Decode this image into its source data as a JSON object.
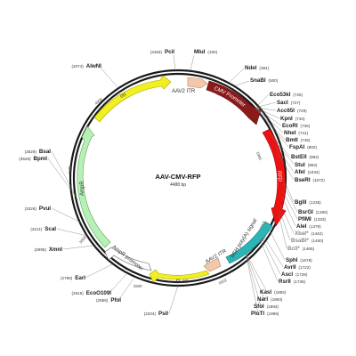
{
  "plasmid": {
    "name": "AAV-CMV-RFP",
    "size_label": "4488 bp",
    "size": 4488
  },
  "ticks": [
    "500",
    "1000",
    "1500",
    "2000",
    "2500",
    "3000",
    "3500",
    "4000"
  ],
  "features": [
    {
      "key": "cmv_promoter",
      "label": "CMV Promoter",
      "color": "#8b1a1a"
    },
    {
      "key": "rfp",
      "label": "RFP",
      "color": "#ee1111"
    },
    {
      "key": "bgh_polya",
      "label": "bGH poly(A) signal",
      "color": "#2bb5b5"
    },
    {
      "key": "aav2_itr_1",
      "label": "AAV2 ITR",
      "color": "#f3c7a8"
    },
    {
      "key": "aav2_itr_2",
      "label": "AAV2 ITR",
      "color": "#f3c7a8"
    },
    {
      "key": "f1_ori",
      "label": "f1 ori",
      "color": "#f2ef20"
    },
    {
      "key": "ampr_promoter",
      "label": "AmpR promoter",
      "color": "#ffffff"
    },
    {
      "key": "ampr",
      "label": "AmpR",
      "color": "#b7f0b7"
    },
    {
      "key": "ori",
      "label": "ori",
      "color": "#f2ef20"
    }
  ],
  "sites": [
    {
      "name": "PciI",
      "pos": "(4483)"
    },
    {
      "name": "MluI",
      "pos": "(150)"
    },
    {
      "name": "AlwNI",
      "pos": "(4074)"
    },
    {
      "name": "NdeI",
      "pos": "(394)"
    },
    {
      "name": "SnaBI",
      "pos": "(500)"
    },
    {
      "name": "Eco53kI",
      "pos": "(725)"
    },
    {
      "name": "SacI",
      "pos": "(727)"
    },
    {
      "name": "Acc65I",
      "pos": "(729)"
    },
    {
      "name": "KpnI",
      "pos": "(733)"
    },
    {
      "name": "EcoRI",
      "pos": "(735)"
    },
    {
      "name": "NheI",
      "pos": "(741)"
    },
    {
      "name": "BmtI",
      "pos": "(745)"
    },
    {
      "name": "FspAI",
      "pos": "(800)"
    },
    {
      "name": "BstEII",
      "pos": "(892)"
    },
    {
      "name": "StuI",
      "pos": "(962)"
    },
    {
      "name": "AfeI",
      "pos": "(1034)"
    },
    {
      "name": "BseRI",
      "pos": "(1072)"
    },
    {
      "name": "BglII",
      "pos": "(1236)"
    },
    {
      "name": "BsrGI",
      "pos": "(1290)"
    },
    {
      "name": "PflMI",
      "pos": "(1333)"
    },
    {
      "name": "AleI",
      "pos": "(1379)"
    },
    {
      "name": "XbaI*",
      "pos": "(1442)"
    },
    {
      "name": "BsaBI*",
      "pos": "(1450)"
    },
    {
      "name": "BclI*",
      "pos": "(1465)"
    },
    {
      "name": "SphI",
      "pos": "(1678)"
    },
    {
      "name": "AvrII",
      "pos": "(1722)"
    },
    {
      "name": "AscI",
      "pos": "(1729)"
    },
    {
      "name": "RsrII",
      "pos": "(1736)"
    },
    {
      "name": "KasI",
      "pos": "(1892)"
    },
    {
      "name": "NarI",
      "pos": "(1893)"
    },
    {
      "name": "SfoI",
      "pos": "(1894)"
    },
    {
      "name": "PluTI",
      "pos": "(1896)"
    },
    {
      "name": "PsiI",
      "pos": "(2324)"
    },
    {
      "name": "PfoI",
      "pos": "(2556)"
    },
    {
      "name": "EcoO109I",
      "pos": "(2615)"
    },
    {
      "name": "EarI",
      "pos": "(2796)"
    },
    {
      "name": "XmnI",
      "pos": "(2995)"
    },
    {
      "name": "ScaI",
      "pos": "(3114)"
    },
    {
      "name": "PvuI",
      "pos": "(3226)"
    },
    {
      "name": "BsaI",
      "pos": "(3529)"
    },
    {
      "name": "BpmI",
      "pos": "(3526)"
    }
  ]
}
